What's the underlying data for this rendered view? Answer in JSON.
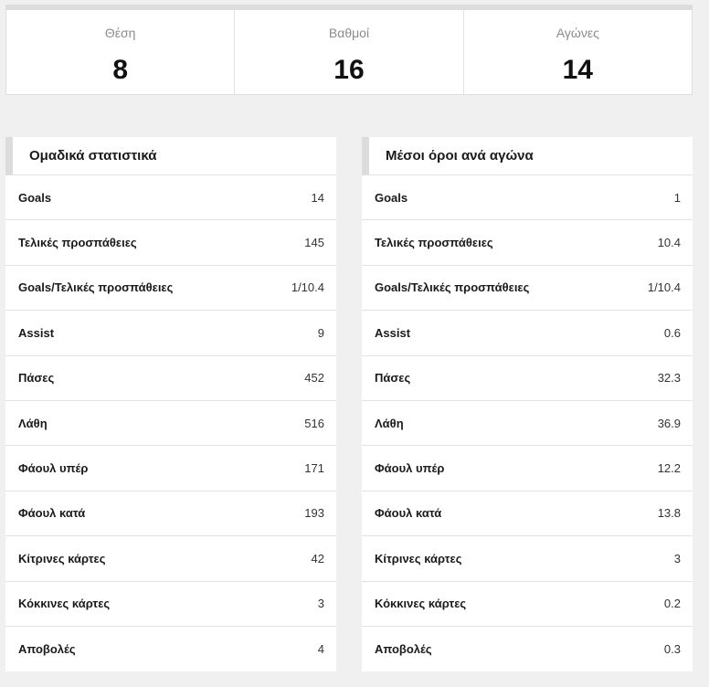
{
  "summary": [
    {
      "label": "Θέση",
      "value": "8"
    },
    {
      "label": "Βαθμοί",
      "value": "16"
    },
    {
      "label": "Αγώνες",
      "value": "14"
    }
  ],
  "team_stats": {
    "title": "Ομαδικά στατιστικά",
    "rows": [
      {
        "label": "Goals",
        "value": "14"
      },
      {
        "label": "Τελικές προσπάθειες",
        "value": "145"
      },
      {
        "label": "Goals/Τελικές προσπάθειες",
        "value": "1/10.4"
      },
      {
        "label": "Assist",
        "value": "9"
      },
      {
        "label": "Πάσες",
        "value": "452"
      },
      {
        "label": "Λάθη",
        "value": "516"
      },
      {
        "label": "Φάουλ υπέρ",
        "value": "171"
      },
      {
        "label": "Φάουλ κατά",
        "value": "193"
      },
      {
        "label": "Κίτρινες κάρτες",
        "value": "42"
      },
      {
        "label": "Κόκκινες κάρτες",
        "value": "3"
      },
      {
        "label": "Αποβολές",
        "value": "4"
      }
    ]
  },
  "per_match": {
    "title": "Μέσοι όροι ανά αγώνα",
    "rows": [
      {
        "label": "Goals",
        "value": "1"
      },
      {
        "label": "Τελικές προσπάθειες",
        "value": "10.4"
      },
      {
        "label": "Goals/Τελικές προσπάθειες",
        "value": "1/10.4"
      },
      {
        "label": "Assist",
        "value": "0.6"
      },
      {
        "label": "Πάσες",
        "value": "32.3"
      },
      {
        "label": "Λάθη",
        "value": "36.9"
      },
      {
        "label": "Φάουλ υπέρ",
        "value": "12.2"
      },
      {
        "label": "Φάουλ κατά",
        "value": "13.8"
      },
      {
        "label": "Κίτρινες κάρτες",
        "value": "3"
      },
      {
        "label": "Κόκκινες κάρτες",
        "value": "0.2"
      },
      {
        "label": "Αποβολές",
        "value": "0.3"
      }
    ]
  }
}
